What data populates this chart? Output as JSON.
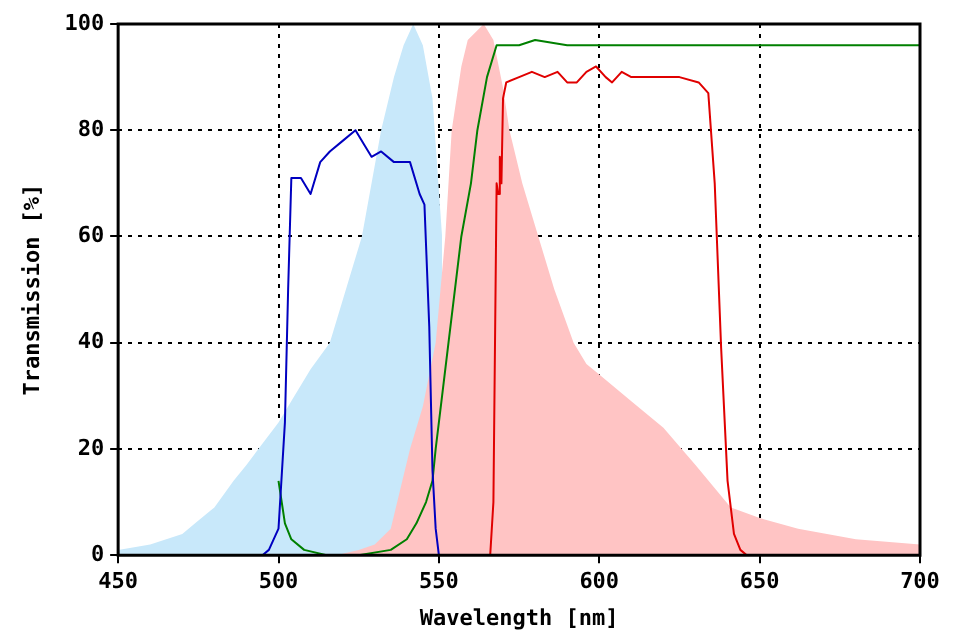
{
  "chart_data": {
    "type": "line",
    "xlabel": "Wavelength [nm]",
    "ylabel": "Transmission [%]",
    "xlim": [
      450,
      700
    ],
    "xticks": [
      450,
      500,
      550,
      600,
      650,
      700
    ],
    "ylim": [
      0,
      100
    ],
    "yticks": [
      0,
      20,
      40,
      60,
      80,
      100
    ],
    "grid": true,
    "legend": false,
    "marker": "none",
    "line_style": "solid",
    "series": [
      {
        "type": "area",
        "color": "#c8e8fa",
        "x": [
          450,
          460,
          470,
          474,
          480,
          486,
          490,
          500,
          505,
          510,
          516,
          520,
          526,
          532,
          536,
          539,
          542,
          545,
          548,
          551
        ],
        "values": [
          1,
          2,
          4,
          6,
          9,
          14,
          17,
          25,
          30,
          35,
          40,
          48,
          60,
          80,
          90,
          96,
          100,
          96,
          86,
          60
        ]
      },
      {
        "type": "area",
        "color": "#ffc4c4",
        "x": [
          518,
          525,
          530,
          535,
          541,
          545,
          549,
          552,
          554,
          557,
          559,
          564,
          567,
          570,
          572,
          576,
          581,
          586,
          592,
          596,
          600,
          610,
          620,
          630,
          641,
          650,
          662,
          680,
          700
        ],
        "values": [
          0,
          1,
          2,
          5,
          20,
          28,
          40,
          60,
          80,
          92,
          97,
          100,
          97,
          88,
          80,
          70,
          60,
          50,
          40,
          36,
          34,
          29,
          24,
          17,
          9,
          7,
          5,
          3,
          2
        ]
      },
      {
        "type": "line",
        "color": "#0000c0",
        "x": [
          495,
          497,
          500,
          502,
          503,
          504,
          507,
          510,
          513,
          516,
          520,
          524,
          527,
          529,
          532,
          536,
          541,
          544,
          545.5,
          547,
          548,
          549,
          550
        ],
        "values": [
          0,
          1,
          5,
          25,
          50,
          71,
          71,
          68,
          74,
          76,
          78,
          80,
          77,
          75,
          76,
          74,
          74,
          68,
          66,
          43,
          16,
          5,
          0
        ]
      },
      {
        "type": "line",
        "color": "#008000",
        "x": [
          500,
          502,
          504,
          508,
          515,
          525,
          535,
          540,
          543,
          546,
          548,
          549,
          551,
          553,
          555,
          557,
          560,
          562,
          565,
          568,
          575,
          580,
          590,
          600,
          620,
          640,
          660,
          680,
          700
        ],
        "values": [
          14,
          6,
          3,
          1,
          0,
          0,
          1,
          3,
          6,
          10,
          14,
          20,
          30,
          40,
          50,
          60,
          70,
          80,
          90,
          96,
          96,
          97,
          96,
          96,
          96,
          96,
          96,
          96,
          96
        ]
      },
      {
        "type": "line",
        "color": "#e00000",
        "x": [
          566,
          567,
          568,
          568.5,
          569,
          569.5,
          570,
          571,
          575,
          579,
          583,
          587,
          590,
          593,
          596,
          599,
          602,
          604,
          607,
          610,
          615,
          620,
          625,
          631,
          634,
          636,
          638,
          640,
          642,
          644,
          646
        ],
        "values": [
          0,
          10,
          70,
          68,
          75,
          70,
          86,
          89,
          90,
          91,
          90,
          91,
          89,
          89,
          91,
          92,
          90,
          89,
          91,
          90,
          90,
          90,
          90,
          89,
          87,
          70,
          39,
          14,
          4,
          1,
          0
        ]
      }
    ]
  }
}
